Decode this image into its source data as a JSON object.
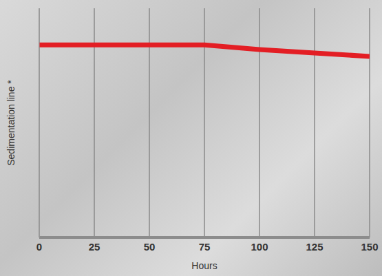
{
  "chart_data": {
    "type": "line",
    "x": [
      0,
      25,
      50,
      75,
      100,
      125,
      150
    ],
    "values": [
      84,
      84,
      84,
      84,
      82,
      80.5,
      79
    ],
    "color": "#e31e24",
    "xlabel": "Hours",
    "ylabel": "Sedimentation line *",
    "xlim": [
      0,
      150
    ],
    "xticks": [
      0,
      25,
      50,
      75,
      100,
      125,
      150
    ],
    "ylim": [
      0,
      100
    ],
    "grid": "x",
    "tick_labels": "x"
  }
}
